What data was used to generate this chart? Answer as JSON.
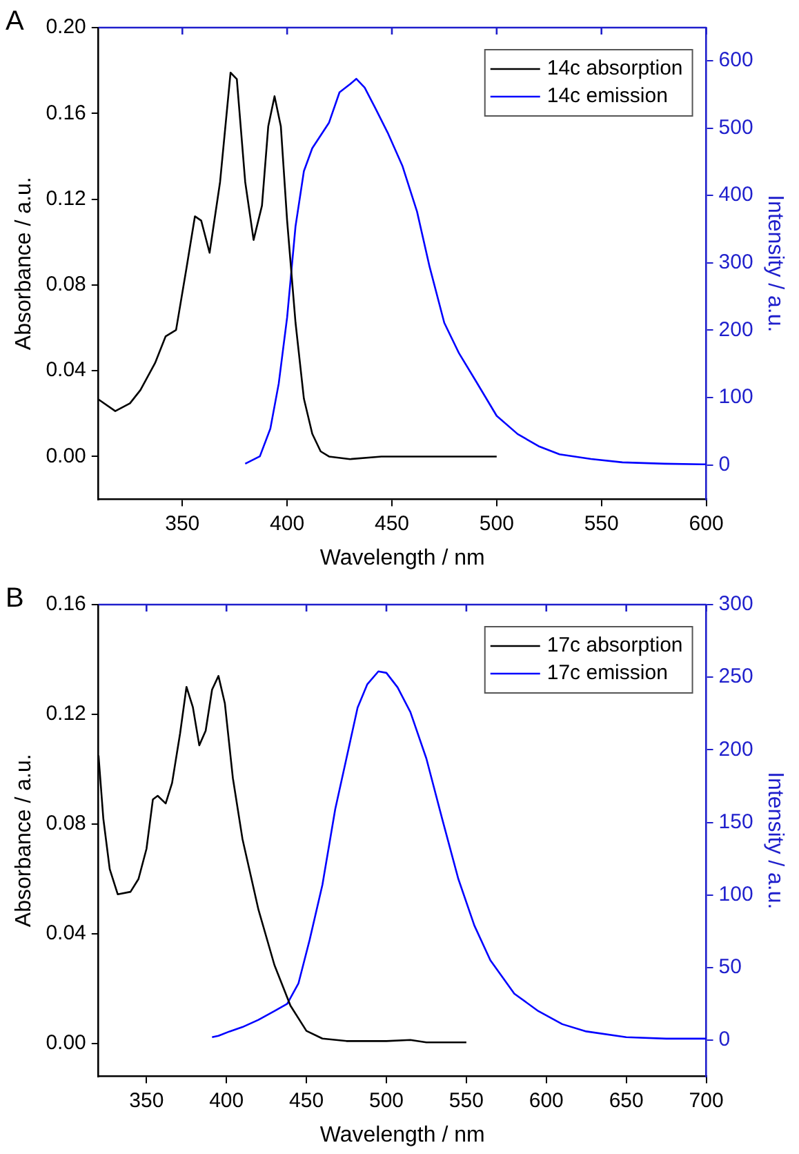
{
  "chart_data": [
    {
      "type": "line",
      "annotations": [
        "A"
      ],
      "xlabel": "Wavelength / nm",
      "ylabel": "Absorbance / a.u.",
      "y2label": "Intensity / a.u.",
      "xlim": [
        310,
        600
      ],
      "xticks": [
        350,
        400,
        450,
        500,
        550,
        600
      ],
      "ylim": [
        -0.02,
        0.2
      ],
      "yticks": [
        {
          "value": 0,
          "label": "0.00"
        },
        {
          "value": 0.04,
          "label": "0.04"
        },
        {
          "value": 0.08,
          "label": "0.08"
        },
        {
          "value": 0.12,
          "label": "0.12"
        },
        {
          "value": 0.16,
          "label": "0.16"
        },
        {
          "value": 0.2,
          "label": "0.20"
        }
      ],
      "y2lim": [
        -51,
        649
      ],
      "y2ticks": [
        0,
        100,
        200,
        300,
        400,
        500,
        600
      ],
      "legend": "top right",
      "series": [
        {
          "name": "14c absorption",
          "color": "#000000",
          "x": [
            310,
            318,
            325,
            330,
            337,
            342,
            347,
            352,
            356,
            359,
            363,
            368,
            373,
            376,
            380,
            384,
            388,
            391,
            394,
            397,
            400,
            404,
            408,
            412,
            416,
            420,
            430,
            445,
            485,
            500
          ],
          "values": [
            0.0266,
            0.0212,
            0.0248,
            0.031,
            0.0436,
            0.056,
            0.059,
            0.088,
            0.112,
            0.11,
            0.095,
            0.128,
            0.179,
            0.176,
            0.128,
            0.101,
            0.117,
            0.154,
            0.168,
            0.154,
            0.11,
            0.0625,
            0.027,
            0.0106,
            0.0024,
            0,
            -0.0012,
            0,
            0,
            0
          ]
        },
        {
          "name": "14c emission",
          "color": "#0000ff",
          "axis": "y2",
          "x": [
            380,
            387,
            392,
            396,
            400,
            404,
            408,
            412,
            416,
            420,
            425,
            430,
            433,
            437,
            442,
            448,
            455,
            462,
            468,
            475,
            482,
            490,
            500,
            510,
            520,
            530,
            545,
            560,
            580,
            600
          ],
          "values": [
            2,
            13,
            54,
            121,
            219,
            354,
            436,
            470,
            489,
            508,
            553,
            565,
            573,
            560,
            530,
            493,
            444,
            376,
            294,
            211,
            166,
            125,
            73,
            46,
            28,
            16,
            9,
            4,
            2,
            1
          ]
        }
      ]
    },
    {
      "type": "line",
      "annotations": [
        "B"
      ],
      "xlabel": "Wavelength / nm",
      "ylabel": "Absorbance / a.u.",
      "y2label": "Intensity / a.u.",
      "xlim": [
        320,
        700
      ],
      "xticks": [
        350,
        400,
        450,
        500,
        550,
        600,
        650,
        700
      ],
      "ylim": [
        -0.012,
        0.16
      ],
      "yticks": [
        {
          "value": 0,
          "label": "0.00"
        },
        {
          "value": 0.04,
          "label": "0.04"
        },
        {
          "value": 0.08,
          "label": "0.08"
        },
        {
          "value": 0.12,
          "label": "0.12"
        },
        {
          "value": 0.16,
          "label": "0.16"
        }
      ],
      "y2lim": [
        -25,
        300
      ],
      "y2ticks": [
        0,
        50,
        100,
        150,
        200,
        250,
        300
      ],
      "legend": "top right",
      "series": [
        {
          "name": "17c absorption",
          "color": "#000000",
          "x": [
            320,
            323,
            327,
            332,
            340,
            345,
            350,
            354,
            357,
            362,
            366,
            371,
            375,
            379,
            383,
            387,
            391,
            395,
            399,
            404,
            410,
            420,
            430,
            440,
            450,
            460,
            475,
            500,
            515,
            525,
            550
          ],
          "values": [
            0.105,
            0.082,
            0.0636,
            0.0544,
            0.0553,
            0.06,
            0.071,
            0.089,
            0.0903,
            0.0875,
            0.095,
            0.113,
            0.13,
            0.1226,
            0.1087,
            0.114,
            0.129,
            0.134,
            0.124,
            0.0968,
            0.0746,
            0.0488,
            0.0286,
            0.0138,
            0.0046,
            0.0018,
            0.0009,
            0.0009,
            0.0013,
            0.0004,
            0.0004
          ]
        },
        {
          "name": "17c emission",
          "color": "#0000ff",
          "axis": "y2",
          "x": [
            391,
            395,
            402,
            410,
            420,
            430,
            438,
            445,
            452,
            460,
            468,
            475,
            482,
            488,
            495,
            500,
            507,
            515,
            525,
            535,
            545,
            555,
            565,
            580,
            595,
            610,
            625,
            650,
            675,
            700
          ],
          "values": [
            2,
            3,
            6,
            9,
            14,
            20,
            25,
            39,
            69,
            107,
            159,
            194,
            229,
            245,
            254,
            253,
            243,
            226,
            194,
            152,
            111,
            79,
            55,
            32,
            20,
            11,
            6,
            2,
            1,
            1
          ]
        }
      ]
    }
  ]
}
